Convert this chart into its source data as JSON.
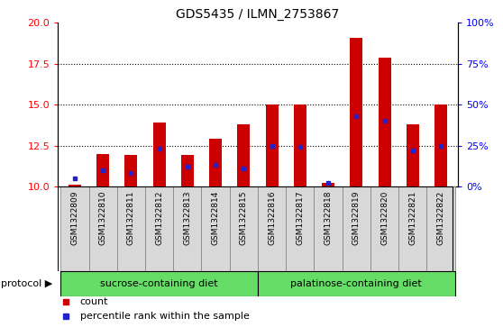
{
  "title": "GDS5435 / ILMN_2753867",
  "samples": [
    "GSM1322809",
    "GSM1322810",
    "GSM1322811",
    "GSM1322812",
    "GSM1322813",
    "GSM1322814",
    "GSM1322815",
    "GSM1322816",
    "GSM1322817",
    "GSM1322818",
    "GSM1322819",
    "GSM1322820",
    "GSM1322821",
    "GSM1322822"
  ],
  "counts": [
    10.1,
    12.0,
    11.9,
    13.9,
    11.9,
    12.9,
    13.8,
    15.0,
    15.0,
    10.2,
    19.1,
    17.9,
    13.8,
    15.0
  ],
  "percentile_ranks": [
    5,
    10,
    8,
    23,
    12,
    13,
    11,
    25,
    24,
    2,
    43,
    40,
    22,
    25
  ],
  "ylim_left": [
    10,
    20
  ],
  "ylim_right": [
    0,
    100
  ],
  "yticks_left": [
    10,
    12.5,
    15,
    17.5,
    20
  ],
  "yticks_right": [
    0,
    25,
    50,
    75,
    100
  ],
  "bar_color": "#cc0000",
  "dot_color": "#2222cc",
  "bg_color": "#d8d8d8",
  "protocol_color": "#66dd66",
  "protocol_groups": [
    {
      "label": "sucrose-containing diet",
      "start": 0,
      "end": 6
    },
    {
      "label": "palatinose-containing diet",
      "start": 7,
      "end": 13
    }
  ],
  "protocol_label": "protocol",
  "legend_count_label": "count",
  "legend_percentile_label": "percentile rank within the sample",
  "bar_bottom": 10.0,
  "bar_width": 0.45
}
